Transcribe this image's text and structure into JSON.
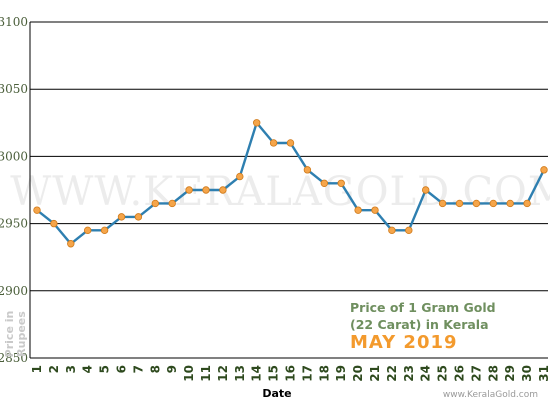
{
  "chart_data": {
    "type": "line",
    "title_line1": "Price of 1 Gram Gold",
    "title_line2": "(22 Carat) in Kerala",
    "period": "MAY 2019",
    "xlabel": "Date",
    "ylabel_line1": "Price in",
    "ylabel_line2": "Rupees",
    "watermark": "WWW.KERALAGOLD.COM",
    "credit": "www.KeralaGold.com",
    "ylim": [
      2850,
      3100
    ],
    "yticks": [
      2850,
      2900,
      2950,
      3000,
      3050,
      3100
    ],
    "x": [
      "1",
      "2",
      "3",
      "4",
      "5",
      "6",
      "7",
      "8",
      "9",
      "10",
      "11",
      "12",
      "13",
      "14",
      "15",
      "16",
      "17",
      "18",
      "19",
      "20",
      "21",
      "22",
      "23",
      "24",
      "25",
      "26",
      "27",
      "28",
      "29",
      "30",
      "31"
    ],
    "values": [
      2960,
      2950,
      2935,
      2945,
      2945,
      2955,
      2955,
      2965,
      2965,
      2975,
      2975,
      2975,
      2985,
      3025,
      3010,
      3010,
      2990,
      2980,
      2980,
      2960,
      2960,
      2945,
      2945,
      2975,
      2965,
      2965,
      2965,
      2965,
      2965,
      2965,
      2990
    ],
    "grid": true,
    "line_color": "#2e7fb0",
    "marker_color": "#f5a54a",
    "marker_stroke": "#d07a1a"
  }
}
